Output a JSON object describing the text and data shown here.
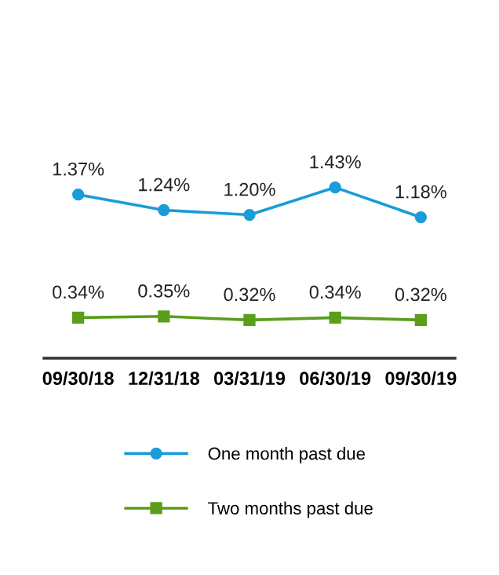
{
  "chart_data": {
    "type": "line",
    "categories": [
      "09/30/18",
      "12/31/18",
      "03/31/19",
      "06/30/19",
      "09/30/19"
    ],
    "series": [
      {
        "name": "One month past due",
        "color": "#1a9cd8",
        "marker": "circle",
        "values": [
          1.37,
          1.24,
          1.2,
          1.43,
          1.18
        ],
        "value_labels": [
          "1.37%",
          "1.24%",
          "1.20%",
          "1.43%",
          "1.18%"
        ]
      },
      {
        "name": "Two months past due",
        "color": "#5a9e1a",
        "marker": "square",
        "values": [
          0.34,
          0.35,
          0.32,
          0.34,
          0.32
        ],
        "value_labels": [
          "0.34%",
          "0.35%",
          "0.32%",
          "0.34%",
          "0.32%"
        ]
      }
    ],
    "tick_labels": "x",
    "legend": "bottom",
    "grid": false,
    "line_style": "solid"
  }
}
